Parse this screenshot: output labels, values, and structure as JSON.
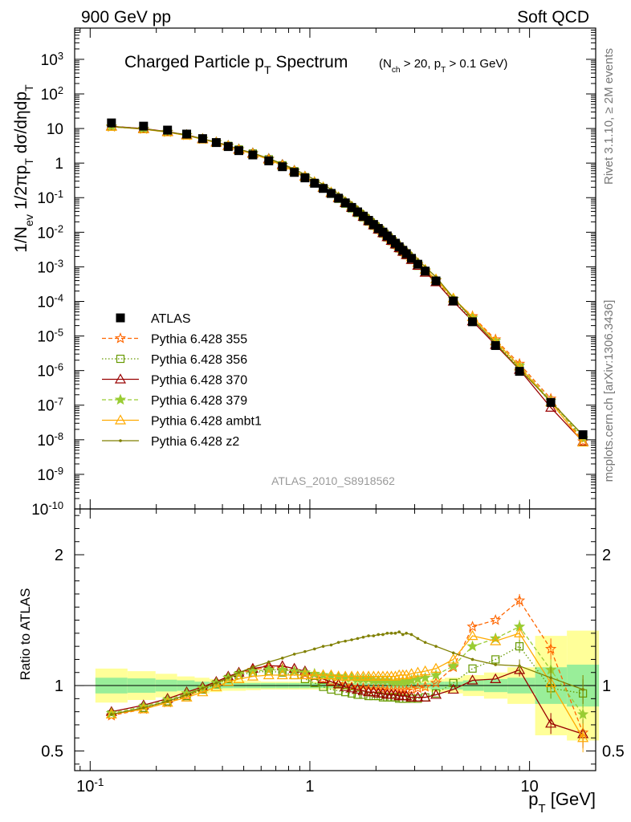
{
  "header": {
    "left": "900 GeV pp",
    "right": "Soft QCD",
    "side_top": "Rivet 3.1.10, ≥ 2M events",
    "side_bottom": "mcplots.cern.ch [arXiv:1306.3436]",
    "analysis_id": "ATLAS_2010_S8918562"
  },
  "chart_data": [
    {
      "type": "line",
      "title": "Charged Particle p_T Spectrum",
      "title_suffix": "(N_ch > 20, p_T > 0.1 GeV)",
      "ylabel": "1/N_ev 1/2πp_T dσ/dηdp_T",
      "xscale": "log",
      "yscale": "log",
      "xlim": [
        0.085,
        20
      ],
      "ylim": [
        1e-10,
        8000
      ],
      "xticks": [
        {
          "v": 0.1,
          "label": "10^-1"
        },
        {
          "v": 1,
          "label": "1"
        },
        {
          "v": 10,
          "label": "10"
        }
      ],
      "yticks": [
        {
          "v": 1e-10,
          "label": "10^-10"
        },
        {
          "v": 1e-09,
          "label": "10^-9"
        },
        {
          "v": 1e-08,
          "label": "10^-8"
        },
        {
          "v": 1e-07,
          "label": "10^-7"
        },
        {
          "v": 1e-06,
          "label": "10^-6"
        },
        {
          "v": 1e-05,
          "label": "10^-5"
        },
        {
          "v": 0.0001,
          "label": "10^-4"
        },
        {
          "v": 0.001,
          "label": "10^-3"
        },
        {
          "v": 0.01,
          "label": "10^-2"
        },
        {
          "v": 0.1,
          "label": "10^-1"
        },
        {
          "v": 1,
          "label": "1"
        },
        {
          "v": 10,
          "label": "10"
        },
        {
          "v": 100,
          "label": "10^2"
        },
        {
          "v": 1000,
          "label": "10^3"
        }
      ],
      "legend_position": "bottom-left",
      "x": [
        0.125,
        0.175,
        0.225,
        0.275,
        0.325,
        0.375,
        0.425,
        0.475,
        0.55,
        0.65,
        0.75,
        0.85,
        0.95,
        1.05,
        1.15,
        1.25,
        1.35,
        1.45,
        1.55,
        1.65,
        1.75,
        1.85,
        1.95,
        2.05,
        2.15,
        2.25,
        2.35,
        2.45,
        2.55,
        2.65,
        2.75,
        2.9,
        3.1,
        3.35,
        3.75,
        4.5,
        5.5,
        7.0,
        9.0,
        12.5,
        17.5
      ],
      "data": {
        "name": "ATLAS",
        "values": [
          14.5,
          11.7,
          9.0,
          6.9,
          5.1,
          3.92,
          3.0,
          2.29,
          1.72,
          1.16,
          0.785,
          0.538,
          0.373,
          0.261,
          0.185,
          0.133,
          0.0966,
          0.0707,
          0.0522,
          0.0388,
          0.0292,
          0.0221,
          0.0168,
          0.0129,
          0.0101,
          0.00783,
          0.00613,
          0.00482,
          0.0038,
          0.00301,
          0.00241,
          0.00176,
          0.00119,
          0.000753,
          0.000391,
          0.000103,
          2.58e-05,
          5.3e-06,
          9.5e-07,
          1.2e-07,
          1.4e-08
        ]
      },
      "series": [
        {
          "name": "Pythia 6.428 355",
          "color": "#ff6600",
          "linestyle": "dashed",
          "marker": "star-open",
          "ratio": [
            0.77,
            0.82,
            0.87,
            0.92,
            0.97,
            1.02,
            1.06,
            1.09,
            1.12,
            1.14,
            1.13,
            1.11,
            1.09,
            1.07,
            1.05,
            1.03,
            1.01,
            1.0,
            0.99,
            0.98,
            0.98,
            0.97,
            0.97,
            0.97,
            0.97,
            0.96,
            0.96,
            0.96,
            0.96,
            0.96,
            0.96,
            0.97,
            0.98,
            0.99,
            1.02,
            1.14,
            1.45,
            1.5,
            1.65,
            1.28,
            0.64
          ]
        },
        {
          "name": "Pythia 6.428 356",
          "color": "#669900",
          "linestyle": "dotted",
          "marker": "square-open",
          "ratio": [
            0.78,
            0.83,
            0.88,
            0.92,
            0.97,
            1.01,
            1.05,
            1.08,
            1.1,
            1.11,
            1.1,
            1.08,
            1.05,
            1.02,
            0.99,
            0.97,
            0.96,
            0.95,
            0.94,
            0.93,
            0.93,
            0.92,
            0.92,
            0.92,
            0.91,
            0.91,
            0.91,
            0.91,
            0.9,
            0.9,
            0.9,
            0.9,
            0.9,
            0.91,
            0.94,
            1.02,
            1.13,
            1.2,
            1.3,
            0.98,
            0.94
          ]
        },
        {
          "name": "Pythia 6.428 370",
          "color": "#990000",
          "linestyle": "solid",
          "marker": "triangle-open",
          "ratio": [
            0.8,
            0.85,
            0.9,
            0.95,
            0.99,
            1.03,
            1.07,
            1.1,
            1.13,
            1.15,
            1.15,
            1.13,
            1.11,
            1.08,
            1.05,
            1.03,
            1.01,
            0.99,
            0.98,
            0.97,
            0.96,
            0.95,
            0.95,
            0.94,
            0.94,
            0.93,
            0.93,
            0.93,
            0.92,
            0.92,
            0.92,
            0.91,
            0.91,
            0.91,
            0.93,
            0.97,
            1.04,
            1.05,
            1.12,
            0.71,
            0.63
          ]
        },
        {
          "name": "Pythia 6.428 379",
          "color": "#99cc33",
          "linestyle": "dashed",
          "marker": "star",
          "ratio": [
            0.79,
            0.84,
            0.89,
            0.94,
            0.98,
            1.02,
            1.06,
            1.09,
            1.11,
            1.12,
            1.12,
            1.11,
            1.1,
            1.09,
            1.08,
            1.07,
            1.07,
            1.06,
            1.06,
            1.05,
            1.05,
            1.05,
            1.04,
            1.04,
            1.04,
            1.04,
            1.03,
            1.03,
            1.03,
            1.03,
            1.03,
            1.04,
            1.05,
            1.06,
            1.08,
            1.15,
            1.3,
            1.36,
            1.45,
            1.12,
            0.78
          ]
        },
        {
          "name": "Pythia 6.428 ambt1",
          "color": "#ffaa00",
          "linestyle": "solid",
          "marker": "triangle-open",
          "ratio": [
            0.78,
            0.82,
            0.87,
            0.91,
            0.95,
            0.99,
            1.03,
            1.05,
            1.07,
            1.08,
            1.08,
            1.08,
            1.08,
            1.08,
            1.08,
            1.08,
            1.07,
            1.07,
            1.07,
            1.07,
            1.07,
            1.07,
            1.07,
            1.07,
            1.07,
            1.07,
            1.07,
            1.07,
            1.08,
            1.08,
            1.08,
            1.09,
            1.1,
            1.11,
            1.13,
            1.2,
            1.38,
            1.34,
            1.4,
            1.02,
            0.6
          ]
        },
        {
          "name": "Pythia 6.428 z2",
          "color": "#808000",
          "linestyle": "solid",
          "marker": "dot",
          "ratio": [
            0.78,
            0.83,
            0.88,
            0.93,
            0.98,
            1.02,
            1.06,
            1.1,
            1.14,
            1.18,
            1.21,
            1.24,
            1.26,
            1.28,
            1.3,
            1.31,
            1.33,
            1.34,
            1.35,
            1.36,
            1.37,
            1.38,
            1.38,
            1.39,
            1.39,
            1.4,
            1.4,
            1.4,
            1.41,
            1.39,
            1.4,
            1.39,
            1.36,
            1.33,
            1.3,
            1.25,
            1.2,
            1.16,
            1.15,
            1.06,
            0.97
          ]
        }
      ]
    },
    {
      "type": "line",
      "ylabel": "Ratio to ATLAS",
      "xlabel": "p_T [GeV]",
      "xscale": "log",
      "ylim": [
        0.35,
        2.35
      ],
      "yticks": [
        {
          "v": 0.5,
          "label": "0.5"
        },
        {
          "v": 1,
          "label": "1"
        },
        {
          "v": 2,
          "label": "2"
        }
      ],
      "reference": 1,
      "band_1sigma": [
        0.06,
        0.055,
        0.045,
        0.04,
        0.03,
        0.025,
        0.02,
        0.02,
        0.02,
        0.02,
        0.02,
        0.02,
        0.02,
        0.02,
        0.02,
        0.02,
        0.02,
        0.02,
        0.02,
        0.02,
        0.02,
        0.02,
        0.02,
        0.02,
        0.02,
        0.02,
        0.02,
        0.02,
        0.02,
        0.02,
        0.02,
        0.02,
        0.02,
        0.02,
        0.03,
        0.03,
        0.04,
        0.05,
        0.06,
        0.14,
        0.16
      ],
      "band_total": [
        0.13,
        0.11,
        0.09,
        0.07,
        0.06,
        0.05,
        0.04,
        0.04,
        0.035,
        0.03,
        0.03,
        0.03,
        0.03,
        0.03,
        0.03,
        0.03,
        0.03,
        0.03,
        0.03,
        0.03,
        0.03,
        0.03,
        0.03,
        0.03,
        0.03,
        0.03,
        0.03,
        0.03,
        0.03,
        0.03,
        0.03,
        0.03,
        0.03,
        0.04,
        0.05,
        0.06,
        0.08,
        0.1,
        0.14,
        0.38,
        0.42
      ],
      "xticks": [
        {
          "v": 0.1,
          "label": "10^-1"
        },
        {
          "v": 1,
          "label": "1"
        },
        {
          "v": 10,
          "label": "10"
        }
      ]
    }
  ]
}
